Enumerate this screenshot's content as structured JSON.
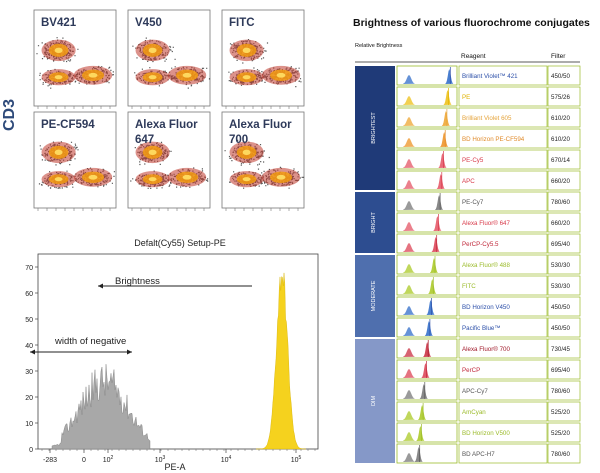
{
  "dot_plots": {
    "y_axis_label": "CD3",
    "panels": [
      {
        "label": "BV421"
      },
      {
        "label": "V450"
      },
      {
        "label": "FITC"
      },
      {
        "label": "PE-CF594"
      },
      {
        "label": "Alexa Fluor 647"
      },
      {
        "label": "Alexa Fluor 700"
      }
    ]
  },
  "histogram": {
    "title": "Defalt(Cy55) Setup-PE",
    "xlabel": "PE-A",
    "x_ticks": [
      "-283",
      "0",
      "10^2",
      "10^3",
      "10^4",
      "10^5"
    ],
    "y_ticks": [
      "0",
      "10",
      "20",
      "30",
      "40",
      "50",
      "60",
      "70"
    ],
    "annotation_brightness": "Brightness",
    "annotation_width": "width of negative",
    "colors": {
      "negative": "#a8a8a8",
      "positive": "#f5d21e"
    }
  },
  "table": {
    "title": "Brightness of various fluorochrome conjugates",
    "header": {
      "relative": "Relative Brightness",
      "reagent": "Reagent",
      "filter": "Filter"
    },
    "groups": [
      {
        "label": "BRIGHTEST",
        "rows": 6,
        "color": "#1f3a78"
      },
      {
        "label": "BRIGHT",
        "rows": 3,
        "color": "#2d4d90"
      },
      {
        "label": "MODERATE",
        "rows": 4,
        "color": "#4f6fae"
      },
      {
        "label": "DIM",
        "rows": 6,
        "color": "#8598c8"
      }
    ],
    "rows": [
      {
        "reagent": "Brilliant Violet™ 421",
        "filter": "450/50",
        "color": "#2b4ea8",
        "peak": "#4a7fd0"
      },
      {
        "reagent": "PE",
        "filter": "575/26",
        "color": "#e0b300",
        "peak": "#f0c832"
      },
      {
        "reagent": "Brilliant Violet 605",
        "filter": "610/20",
        "color": "#e5a33a",
        "peak": "#f0b04a"
      },
      {
        "reagent": "BD Horizon PE-CF594",
        "filter": "610/20",
        "color": "#e08a2a",
        "peak": "#f0a040"
      },
      {
        "reagent": "PE-Cy5",
        "filter": "670/14",
        "color": "#d83a4a",
        "peak": "#e86a78"
      },
      {
        "reagent": "APC",
        "filter": "660/20",
        "color": "#d83a4a",
        "peak": "#e86a78"
      },
      {
        "reagent": "PE-Cy7",
        "filter": "780/60",
        "color": "#555555",
        "peak": "#888888"
      },
      {
        "reagent": "Alexa Fluor® 647",
        "filter": "660/20",
        "color": "#d83a4a",
        "peak": "#e86a78"
      },
      {
        "reagent": "PerCP-Cy5.5",
        "filter": "695/40",
        "color": "#c0283a",
        "peak": "#e05a6a"
      },
      {
        "reagent": "Alexa Fluor® 488",
        "filter": "530/30",
        "color": "#9bbb2a",
        "peak": "#b5d040"
      },
      {
        "reagent": "FITC",
        "filter": "530/30",
        "color": "#9bbb2a",
        "peak": "#b5d040"
      },
      {
        "reagent": "BD Horizon V450",
        "filter": "450/50",
        "color": "#2b4ea8",
        "peak": "#4a7fd0"
      },
      {
        "reagent": "Pacific Blue™",
        "filter": "450/50",
        "color": "#2b4ea8",
        "peak": "#4a7fd0"
      },
      {
        "reagent": "Alexa Fluor® 700",
        "filter": "730/45",
        "color": "#a01828",
        "peak": "#d04858"
      },
      {
        "reagent": "PerCP",
        "filter": "695/40",
        "color": "#c0283a",
        "peak": "#e05a6a"
      },
      {
        "reagent": "APC-Cy7",
        "filter": "780/60",
        "color": "#555555",
        "peak": "#888888"
      },
      {
        "reagent": "AmCyan",
        "filter": "525/20",
        "color": "#9bbb2a",
        "peak": "#b5d040"
      },
      {
        "reagent": "BD Horizon V500",
        "filter": "525/20",
        "color": "#9bbb2a",
        "peak": "#b5d040"
      },
      {
        "reagent": "BD APC-H7",
        "filter": "780/60",
        "color": "#555555",
        "peak": "#888888"
      }
    ]
  }
}
